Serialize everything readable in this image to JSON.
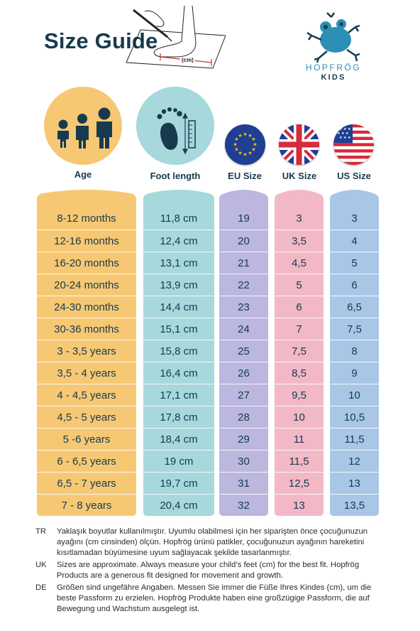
{
  "header": {
    "title": "Size Guide",
    "measure_unit_label": "(cm)"
  },
  "brand": {
    "name": "HOPFRÖG",
    "sub": "KIDS",
    "color": "#2c8fb5"
  },
  "columns": [
    {
      "key": "age",
      "header": "Age",
      "bg": "#f7c873",
      "icon": "children-icon"
    },
    {
      "key": "foot",
      "header": "Foot length",
      "bg": "#a6d8dc",
      "icon": "foot-ruler-icon"
    },
    {
      "key": "eu",
      "header": "EU Size",
      "bg": "#bbb7df",
      "icon": "eu-flag-icon"
    },
    {
      "key": "uk",
      "header": "UK Size",
      "bg": "#f2b8c6",
      "icon": "uk-flag-icon"
    },
    {
      "key": "us",
      "header": "US Size",
      "bg": "#a9c6e6",
      "icon": "us-flag-icon"
    }
  ],
  "table": {
    "age": [
      "8-12 months",
      "12-16 months",
      "16-20 months",
      "20-24 months",
      "24-30 months",
      "30-36 months",
      "3 - 3,5 years",
      "3,5 - 4 years",
      "4 - 4,5 years",
      "4,5 - 5 years",
      "5 -6 years",
      "6 - 6,5 years",
      "6,5 - 7 years",
      "7 - 8 years"
    ],
    "foot": [
      "11,8 cm",
      "12,4 cm",
      "13,1 cm",
      "13,9 cm",
      "14,4 cm",
      "15,1 cm",
      "15,8 cm",
      "16,4 cm",
      "17,1 cm",
      "17,8 cm",
      "18,4 cm",
      "19 cm",
      "19,7 cm",
      "20,4 cm"
    ],
    "eu": [
      "19",
      "20",
      "21",
      "22",
      "23",
      "24",
      "25",
      "26",
      "27",
      "28",
      "29",
      "30",
      "31",
      "32"
    ],
    "uk": [
      "3",
      "3,5",
      "4,5",
      "5",
      "6",
      "7",
      "7,5",
      "8,5",
      "9,5",
      "10",
      "11",
      "11,5",
      "12,5",
      "13"
    ],
    "us": [
      "3",
      "4",
      "5",
      "6",
      "6,5",
      "7,5",
      "8",
      "9",
      "10",
      "10,5",
      "11,5",
      "12",
      "13",
      "13,5"
    ]
  },
  "notes": [
    {
      "lang": "TR",
      "text": "Yaklaşık boyutlar kullanılmıştır. Uyumlu olabilmesi için her siparişten önce çocuğunuzun ayağını (cm cinsinden) ölçün. Hopfrög ürünü patikler, çocuğunuzun ayağının hareketini kısıtlamadan büyümesine uyum sağlayacak şekilde tasarlanmıştır."
    },
    {
      "lang": "UK",
      "text": "Sizes are approximate. Always measure your child’s feet (cm) for the best fit. Hopfrög Products are a generous fit designed for movement and growth."
    },
    {
      "lang": "DE",
      "text": "Größen sind ungefähre Angaben. Messen Sie immer die Füße Ihres Kindes (cm), um die beste Passform zu erzielen. Hopfrög Produkte haben eine großzügige Passform, die auf Bewegung und Wachstum ausgelegt ist."
    }
  ]
}
